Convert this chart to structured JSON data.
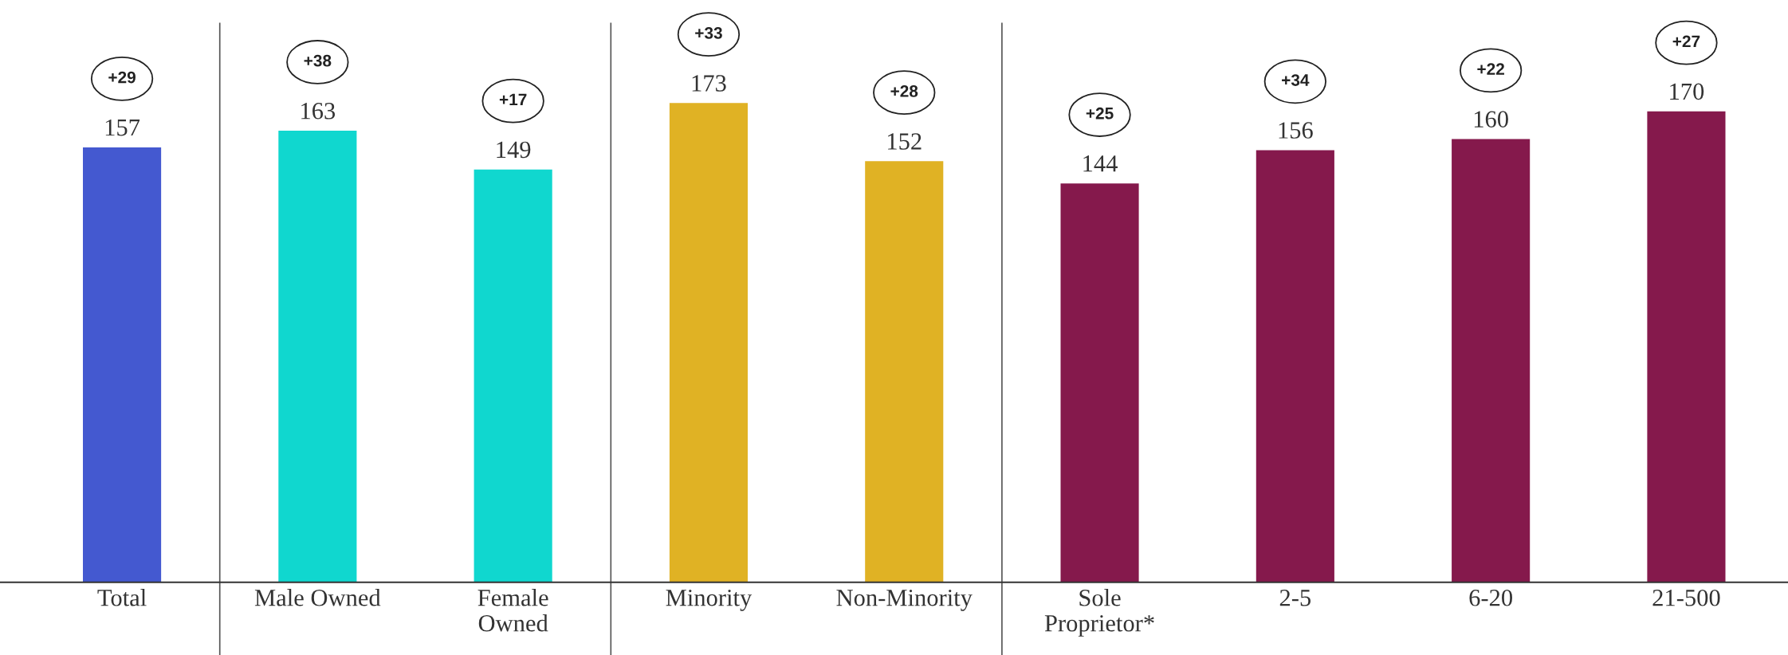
{
  "chart_data": {
    "type": "bar",
    "categories": [
      "Total",
      "Male Owned",
      "Female\nOwned",
      "Minority",
      "Non-Minority",
      "Sole\nProprietor*",
      "2-5",
      "6-20",
      "21-500"
    ],
    "values": [
      157,
      163,
      149,
      173,
      152,
      144,
      156,
      160,
      170
    ],
    "colors": [
      "#4459d0",
      "#10d7cf",
      "#10d7cf",
      "#e0b224",
      "#e0b224",
      "#85194c",
      "#85194c",
      "#85194c",
      "#85194c"
    ],
    "data_labels": true,
    "annotations": [
      "+29",
      "+38",
      "+17",
      "+33",
      "+28",
      "+25",
      "+34",
      "+22",
      "+27"
    ]
  }
}
